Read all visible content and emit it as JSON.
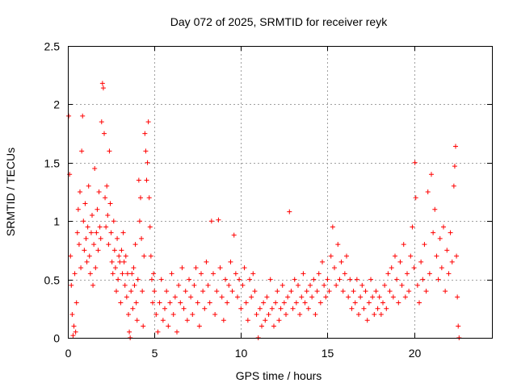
{
  "chart_data": {
    "type": "scatter",
    "title": "Day 072 of 2025, SRMTID for receiver reyk",
    "xlabel": "GPS time / hours",
    "ylabel": "SRMTID / TECUs",
    "xlim": [
      0,
      24.5
    ],
    "ylim": [
      0,
      2.5
    ],
    "xticks": [
      0,
      5,
      10,
      15,
      20
    ],
    "xtick_labels": [
      "0",
      "5",
      "10",
      "15",
      "20"
    ],
    "yticks": [
      0,
      0.5,
      1,
      1.5,
      2,
      2.5
    ],
    "ytick_labels": [
      "0",
      "0.5",
      "1",
      "1.5",
      "2",
      "2.5"
    ],
    "grid": true,
    "marker": "+",
    "color": "#ff0000",
    "series": [
      {
        "name": "SRMTID",
        "points": [
          [
            0.05,
            1.9
          ],
          [
            0.1,
            1.4
          ],
          [
            0.15,
            0.7
          ],
          [
            0.2,
            0.45
          ],
          [
            0.25,
            0.2
          ],
          [
            0.3,
            0.02
          ],
          [
            0.35,
            0.1
          ],
          [
            0.4,
            0.55
          ],
          [
            0.45,
            0.05
          ],
          [
            0.5,
            0.3
          ],
          [
            0.55,
            0.9
          ],
          [
            0.6,
            1.1
          ],
          [
            0.65,
            0.8
          ],
          [
            0.7,
            1.25
          ],
          [
            0.75,
            0.6
          ],
          [
            0.8,
            1.6
          ],
          [
            0.85,
            1.9
          ],
          [
            0.9,
            1.0
          ],
          [
            0.95,
            0.75
          ],
          [
            1.0,
            1.15
          ],
          [
            1.05,
            0.85
          ],
          [
            1.1,
            0.65
          ],
          [
            1.15,
            0.95
          ],
          [
            1.2,
            1.3
          ],
          [
            1.25,
            0.7
          ],
          [
            1.3,
            0.55
          ],
          [
            1.35,
            0.9
          ],
          [
            1.4,
            1.05
          ],
          [
            1.45,
            0.45
          ],
          [
            1.5,
            0.8
          ],
          [
            1.55,
            1.45
          ],
          [
            1.6,
            0.6
          ],
          [
            1.65,
            0.9
          ],
          [
            1.7,
            1.1
          ],
          [
            1.75,
            0.75
          ],
          [
            1.8,
            1.25
          ],
          [
            1.85,
            0.95
          ],
          [
            1.9,
            0.85
          ],
          [
            1.95,
            1.85
          ],
          [
            2.0,
            2.18
          ],
          [
            2.05,
            2.14
          ],
          [
            2.1,
            1.75
          ],
          [
            2.15,
            1.2
          ],
          [
            2.2,
            0.95
          ],
          [
            2.25,
            1.3
          ],
          [
            2.3,
            1.05
          ],
          [
            2.35,
            0.8
          ],
          [
            2.4,
            1.6
          ],
          [
            2.45,
            1.15
          ],
          [
            2.5,
            0.9
          ],
          [
            2.55,
            0.65
          ],
          [
            2.6,
            0.55
          ],
          [
            2.65,
            1.0
          ],
          [
            2.7,
            0.75
          ],
          [
            2.75,
            0.6
          ],
          [
            2.8,
            0.4
          ],
          [
            2.85,
            0.85
          ],
          [
            2.9,
            0.5
          ],
          [
            2.95,
            0.7
          ],
          [
            3.0,
            0.65
          ],
          [
            3.05,
            0.3
          ],
          [
            3.1,
            0.75
          ],
          [
            3.15,
            0.55
          ],
          [
            3.2,
            0.9
          ],
          [
            3.25,
            0.65
          ],
          [
            3.3,
            0.45
          ],
          [
            3.35,
            0.7
          ],
          [
            3.4,
            0.35
          ],
          [
            3.45,
            0.55
          ],
          [
            3.5,
            0.2
          ],
          [
            3.55,
            0.05
          ],
          [
            3.6,
            0.0
          ],
          [
            3.65,
            0.4
          ],
          [
            3.7,
            0.55
          ],
          [
            3.75,
            0.25
          ],
          [
            3.8,
            0.6
          ],
          [
            3.85,
            0.45
          ],
          [
            3.9,
            0.8
          ],
          [
            3.95,
            0.3
          ],
          [
            4.0,
            0.15
          ],
          [
            4.05,
            0.5
          ],
          [
            4.1,
            1.35
          ],
          [
            4.15,
            1.0
          ],
          [
            4.2,
            1.2
          ],
          [
            4.25,
            0.85
          ],
          [
            4.3,
            0.4
          ],
          [
            4.35,
            0.1
          ],
          [
            4.4,
            0.7
          ],
          [
            4.45,
            1.75
          ],
          [
            4.5,
            1.6
          ],
          [
            4.55,
            1.35
          ],
          [
            4.6,
            1.5
          ],
          [
            4.65,
            1.85
          ],
          [
            4.7,
            1.2
          ],
          [
            4.75,
            0.95
          ],
          [
            4.8,
            0.7
          ],
          [
            4.85,
            0.5
          ],
          [
            4.9,
            0.3
          ],
          [
            4.95,
            0.55
          ],
          [
            5.0,
            0.4
          ],
          [
            5.1,
            0.2
          ],
          [
            5.2,
            0.05
          ],
          [
            5.3,
            0.3
          ],
          [
            5.4,
            0.5
          ],
          [
            5.5,
            0.15
          ],
          [
            5.6,
            0.25
          ],
          [
            5.7,
            0.4
          ],
          [
            5.8,
            0.1
          ],
          [
            5.9,
            0.3
          ],
          [
            6.0,
            0.55
          ],
          [
            6.1,
            0.2
          ],
          [
            6.2,
            0.35
          ],
          [
            6.3,
            0.05
          ],
          [
            6.4,
            0.45
          ],
          [
            6.5,
            0.3
          ],
          [
            6.6,
            0.6
          ],
          [
            6.7,
            0.25
          ],
          [
            6.8,
            0.4
          ],
          [
            6.9,
            0.15
          ],
          [
            7.0,
            0.5
          ],
          [
            7.1,
            0.35
          ],
          [
            7.2,
            0.2
          ],
          [
            7.3,
            0.45
          ],
          [
            7.4,
            0.6
          ],
          [
            7.5,
            0.3
          ],
          [
            7.6,
            0.1
          ],
          [
            7.7,
            0.55
          ],
          [
            7.8,
            0.4
          ],
          [
            7.9,
            0.25
          ],
          [
            8.0,
            0.65
          ],
          [
            8.1,
            0.45
          ],
          [
            8.2,
            0.3
          ],
          [
            8.3,
            1.0
          ],
          [
            8.4,
            0.55
          ],
          [
            8.5,
            0.2
          ],
          [
            8.6,
            0.4
          ],
          [
            8.7,
            1.01
          ],
          [
            8.8,
            0.6
          ],
          [
            8.9,
            0.35
          ],
          [
            9.0,
            0.15
          ],
          [
            9.1,
            0.5
          ],
          [
            9.2,
            0.3
          ],
          [
            9.3,
            0.45
          ],
          [
            9.4,
            0.65
          ],
          [
            9.5,
            0.4
          ],
          [
            9.6,
            0.88
          ],
          [
            9.7,
            0.55
          ],
          [
            9.8,
            0.35
          ],
          [
            9.9,
            0.5
          ],
          [
            10.0,
            0.25
          ],
          [
            10.1,
            0.45
          ],
          [
            10.2,
            0.6
          ],
          [
            10.3,
            0.3
          ],
          [
            10.4,
            0.15
          ],
          [
            10.5,
            0.5
          ],
          [
            10.6,
            0.35
          ],
          [
            10.7,
            0.55
          ],
          [
            10.8,
            0.4
          ],
          [
            10.9,
            0.2
          ],
          [
            11.0,
            0.0
          ],
          [
            11.1,
            0.25
          ],
          [
            11.2,
            0.1
          ],
          [
            11.3,
            0.3
          ],
          [
            11.4,
            0.15
          ],
          [
            11.5,
            0.35
          ],
          [
            11.6,
            0.2
          ],
          [
            11.7,
            0.5
          ],
          [
            11.8,
            0.25
          ],
          [
            11.9,
            0.1
          ],
          [
            12.0,
            0.3
          ],
          [
            12.1,
            0.4
          ],
          [
            12.2,
            0.15
          ],
          [
            12.3,
            0.25
          ],
          [
            12.4,
            0.45
          ],
          [
            12.5,
            0.3
          ],
          [
            12.6,
            0.2
          ],
          [
            12.7,
            0.35
          ],
          [
            12.8,
            1.08
          ],
          [
            12.9,
            0.4
          ],
          [
            13.0,
            0.25
          ],
          [
            13.1,
            0.5
          ],
          [
            13.2,
            0.3
          ],
          [
            13.3,
            0.45
          ],
          [
            13.4,
            0.2
          ],
          [
            13.5,
            0.35
          ],
          [
            13.6,
            0.55
          ],
          [
            13.7,
            0.3
          ],
          [
            13.8,
            0.4
          ],
          [
            13.9,
            0.25
          ],
          [
            14.0,
            0.45
          ],
          [
            14.1,
            0.35
          ],
          [
            14.2,
            0.5
          ],
          [
            14.3,
            0.2
          ],
          [
            14.4,
            0.4
          ],
          [
            14.5,
            0.55
          ],
          [
            14.6,
            0.3
          ],
          [
            14.7,
            0.65
          ],
          [
            14.8,
            0.45
          ],
          [
            14.9,
            0.35
          ],
          [
            15.0,
            0.5
          ],
          [
            15.1,
            0.4
          ],
          [
            15.2,
            0.7
          ],
          [
            15.3,
            0.95
          ],
          [
            15.4,
            0.6
          ],
          [
            15.5,
            0.45
          ],
          [
            15.6,
            0.8
          ],
          [
            15.7,
            0.5
          ],
          [
            15.8,
            0.65
          ],
          [
            15.9,
            0.4
          ],
          [
            16.0,
            0.55
          ],
          [
            16.1,
            0.7
          ],
          [
            16.2,
            0.35
          ],
          [
            16.3,
            0.5
          ],
          [
            16.4,
            0.25
          ],
          [
            16.5,
            0.4
          ],
          [
            16.6,
            0.3
          ],
          [
            16.7,
            0.5
          ],
          [
            16.8,
            0.2
          ],
          [
            16.9,
            0.35
          ],
          [
            17.0,
            0.45
          ],
          [
            17.1,
            0.25
          ],
          [
            17.2,
            0.4
          ],
          [
            17.3,
            0.15
          ],
          [
            17.4,
            0.3
          ],
          [
            17.5,
            0.5
          ],
          [
            17.6,
            0.35
          ],
          [
            17.7,
            0.2
          ],
          [
            17.8,
            0.4
          ],
          [
            17.9,
            0.25
          ],
          [
            18.0,
            0.35
          ],
          [
            18.1,
            0.2
          ],
          [
            18.2,
            0.3
          ],
          [
            18.3,
            0.45
          ],
          [
            18.4,
            0.25
          ],
          [
            18.5,
            0.55
          ],
          [
            18.6,
            0.4
          ],
          [
            18.7,
            0.6
          ],
          [
            18.8,
            0.35
          ],
          [
            18.9,
            0.7
          ],
          [
            19.0,
            0.5
          ],
          [
            19.1,
            0.3
          ],
          [
            19.2,
            0.65
          ],
          [
            19.3,
            0.45
          ],
          [
            19.4,
            0.8
          ],
          [
            19.5,
            0.35
          ],
          [
            19.6,
            0.55
          ],
          [
            19.7,
            0.4
          ],
          [
            19.8,
            0.7
          ],
          [
            19.9,
            0.95
          ],
          [
            20.0,
            0.6
          ],
          [
            20.05,
            1.5
          ],
          [
            20.1,
            1.2
          ],
          [
            20.2,
            0.45
          ],
          [
            20.3,
            0.3
          ],
          [
            20.4,
            0.65
          ],
          [
            20.5,
            0.5
          ],
          [
            20.6,
            0.8
          ],
          [
            20.7,
            0.4
          ],
          [
            20.8,
            1.25
          ],
          [
            20.9,
            0.55
          ],
          [
            21.0,
            1.4
          ],
          [
            21.1,
            0.9
          ],
          [
            21.2,
            1.1
          ],
          [
            21.3,
            0.7
          ],
          [
            21.4,
            0.5
          ],
          [
            21.5,
            0.85
          ],
          [
            21.6,
            0.6
          ],
          [
            21.7,
            0.95
          ],
          [
            21.8,
            0.4
          ],
          [
            21.9,
            0.75
          ],
          [
            22.0,
            0.55
          ],
          [
            22.1,
            0.9
          ],
          [
            22.2,
            0.65
          ],
          [
            22.3,
            1.3
          ],
          [
            22.35,
            1.47
          ],
          [
            22.4,
            1.64
          ],
          [
            22.45,
            0.7
          ],
          [
            22.5,
            0.35
          ],
          [
            22.55,
            0.1
          ],
          [
            22.6,
            0.0
          ]
        ]
      }
    ]
  }
}
